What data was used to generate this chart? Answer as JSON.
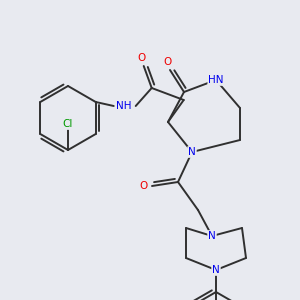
{
  "bg_color": "#e8eaf0",
  "atom_colors": {
    "C": "#303030",
    "N": "#0000ee",
    "O": "#ee0000",
    "Cl": "#009900",
    "H": "#555555"
  },
  "bond_color": "#303030",
  "bond_width": 1.4,
  "figsize": [
    3.0,
    3.0
  ],
  "dpi": 100
}
